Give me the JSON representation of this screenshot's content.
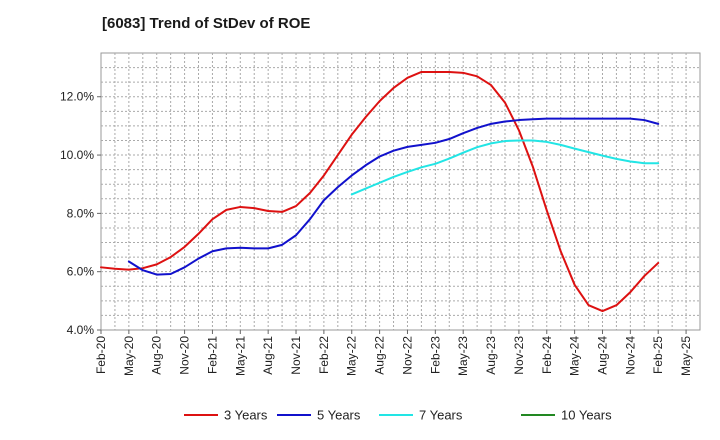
{
  "chart_data": {
    "type": "line",
    "title": "[6083]  Trend of StDev of ROE",
    "xlabel": "",
    "ylabel": "",
    "x_ticks": [
      "Feb-20",
      "May-20",
      "Aug-20",
      "Nov-20",
      "Feb-21",
      "May-21",
      "Aug-21",
      "Nov-21",
      "Feb-22",
      "May-22",
      "Aug-22",
      "Nov-22",
      "Feb-23",
      "May-23",
      "Aug-23",
      "Nov-23",
      "Feb-24",
      "May-24",
      "Aug-24",
      "Nov-24",
      "Feb-25",
      "May-25"
    ],
    "y_ticks": [
      "4.0%",
      "6.0%",
      "8.0%",
      "10.0%",
      "12.0%"
    ],
    "ylim": [
      4.0,
      13.5
    ],
    "y_unit": "%",
    "grid": true,
    "legend_position": "bottom",
    "series": [
      {
        "name": "3 Years",
        "color": "#dd1111",
        "points": [
          [
            0,
            6.15
          ],
          [
            0.5,
            6.1
          ],
          [
            1,
            6.07
          ],
          [
            1.5,
            6.12
          ],
          [
            2,
            6.25
          ],
          [
            2.5,
            6.5
          ],
          [
            3,
            6.85
          ],
          [
            3.5,
            7.3
          ],
          [
            4,
            7.8
          ],
          [
            4.5,
            8.12
          ],
          [
            5,
            8.22
          ],
          [
            5.5,
            8.18
          ],
          [
            6,
            8.08
          ],
          [
            6.5,
            8.05
          ],
          [
            7,
            8.25
          ],
          [
            7.5,
            8.7
          ],
          [
            8,
            9.3
          ],
          [
            8.5,
            10.0
          ],
          [
            9,
            10.7
          ],
          [
            9.5,
            11.3
          ],
          [
            10,
            11.85
          ],
          [
            10.5,
            12.3
          ],
          [
            11,
            12.65
          ],
          [
            11.5,
            12.85
          ],
          [
            12,
            12.85
          ],
          [
            12.5,
            12.85
          ],
          [
            13,
            12.82
          ],
          [
            13.5,
            12.7
          ],
          [
            14,
            12.4
          ],
          [
            14.5,
            11.8
          ],
          [
            15,
            10.85
          ],
          [
            15.5,
            9.6
          ],
          [
            16,
            8.1
          ],
          [
            16.5,
            6.7
          ],
          [
            17,
            5.55
          ],
          [
            17.5,
            4.85
          ],
          [
            18,
            4.65
          ],
          [
            18.5,
            4.85
          ],
          [
            19,
            5.3
          ],
          [
            19.5,
            5.85
          ],
          [
            20,
            6.3
          ]
        ]
      },
      {
        "name": "5 Years",
        "color": "#1111cc",
        "points": [
          [
            1,
            6.35
          ],
          [
            1.5,
            6.05
          ],
          [
            2,
            5.9
          ],
          [
            2.5,
            5.92
          ],
          [
            3,
            6.15
          ],
          [
            3.5,
            6.45
          ],
          [
            4,
            6.7
          ],
          [
            4.5,
            6.8
          ],
          [
            5,
            6.82
          ],
          [
            5.5,
            6.8
          ],
          [
            6,
            6.8
          ],
          [
            6.5,
            6.92
          ],
          [
            7,
            7.25
          ],
          [
            7.5,
            7.8
          ],
          [
            8,
            8.45
          ],
          [
            8.5,
            8.9
          ],
          [
            9,
            9.3
          ],
          [
            9.5,
            9.65
          ],
          [
            10,
            9.95
          ],
          [
            10.5,
            10.15
          ],
          [
            11,
            10.28
          ],
          [
            11.5,
            10.35
          ],
          [
            12,
            10.42
          ],
          [
            12.5,
            10.55
          ],
          [
            13,
            10.75
          ],
          [
            13.5,
            10.93
          ],
          [
            14,
            11.07
          ],
          [
            14.5,
            11.15
          ],
          [
            15,
            11.2
          ],
          [
            15.5,
            11.23
          ],
          [
            16,
            11.25
          ],
          [
            16.5,
            11.25
          ],
          [
            17,
            11.25
          ],
          [
            17.5,
            11.25
          ],
          [
            18,
            11.25
          ],
          [
            18.5,
            11.25
          ],
          [
            19,
            11.25
          ],
          [
            19.5,
            11.2
          ],
          [
            20,
            11.07
          ]
        ]
      },
      {
        "name": "7 Years",
        "color": "#22e5e5",
        "points": [
          [
            9,
            8.65
          ],
          [
            9.5,
            8.85
          ],
          [
            10,
            9.05
          ],
          [
            10.5,
            9.25
          ],
          [
            11,
            9.42
          ],
          [
            11.5,
            9.58
          ],
          [
            12,
            9.7
          ],
          [
            12.5,
            9.88
          ],
          [
            13,
            10.08
          ],
          [
            13.5,
            10.27
          ],
          [
            14,
            10.4
          ],
          [
            14.5,
            10.48
          ],
          [
            15,
            10.5
          ],
          [
            15.5,
            10.5
          ],
          [
            16,
            10.45
          ],
          [
            16.5,
            10.35
          ],
          [
            17,
            10.22
          ],
          [
            17.5,
            10.1
          ],
          [
            18,
            9.98
          ],
          [
            18.5,
            9.87
          ],
          [
            19,
            9.78
          ],
          [
            19.5,
            9.72
          ],
          [
            20,
            9.72
          ]
        ]
      },
      {
        "name": "10 Years",
        "color": "#228822",
        "points": []
      }
    ]
  }
}
